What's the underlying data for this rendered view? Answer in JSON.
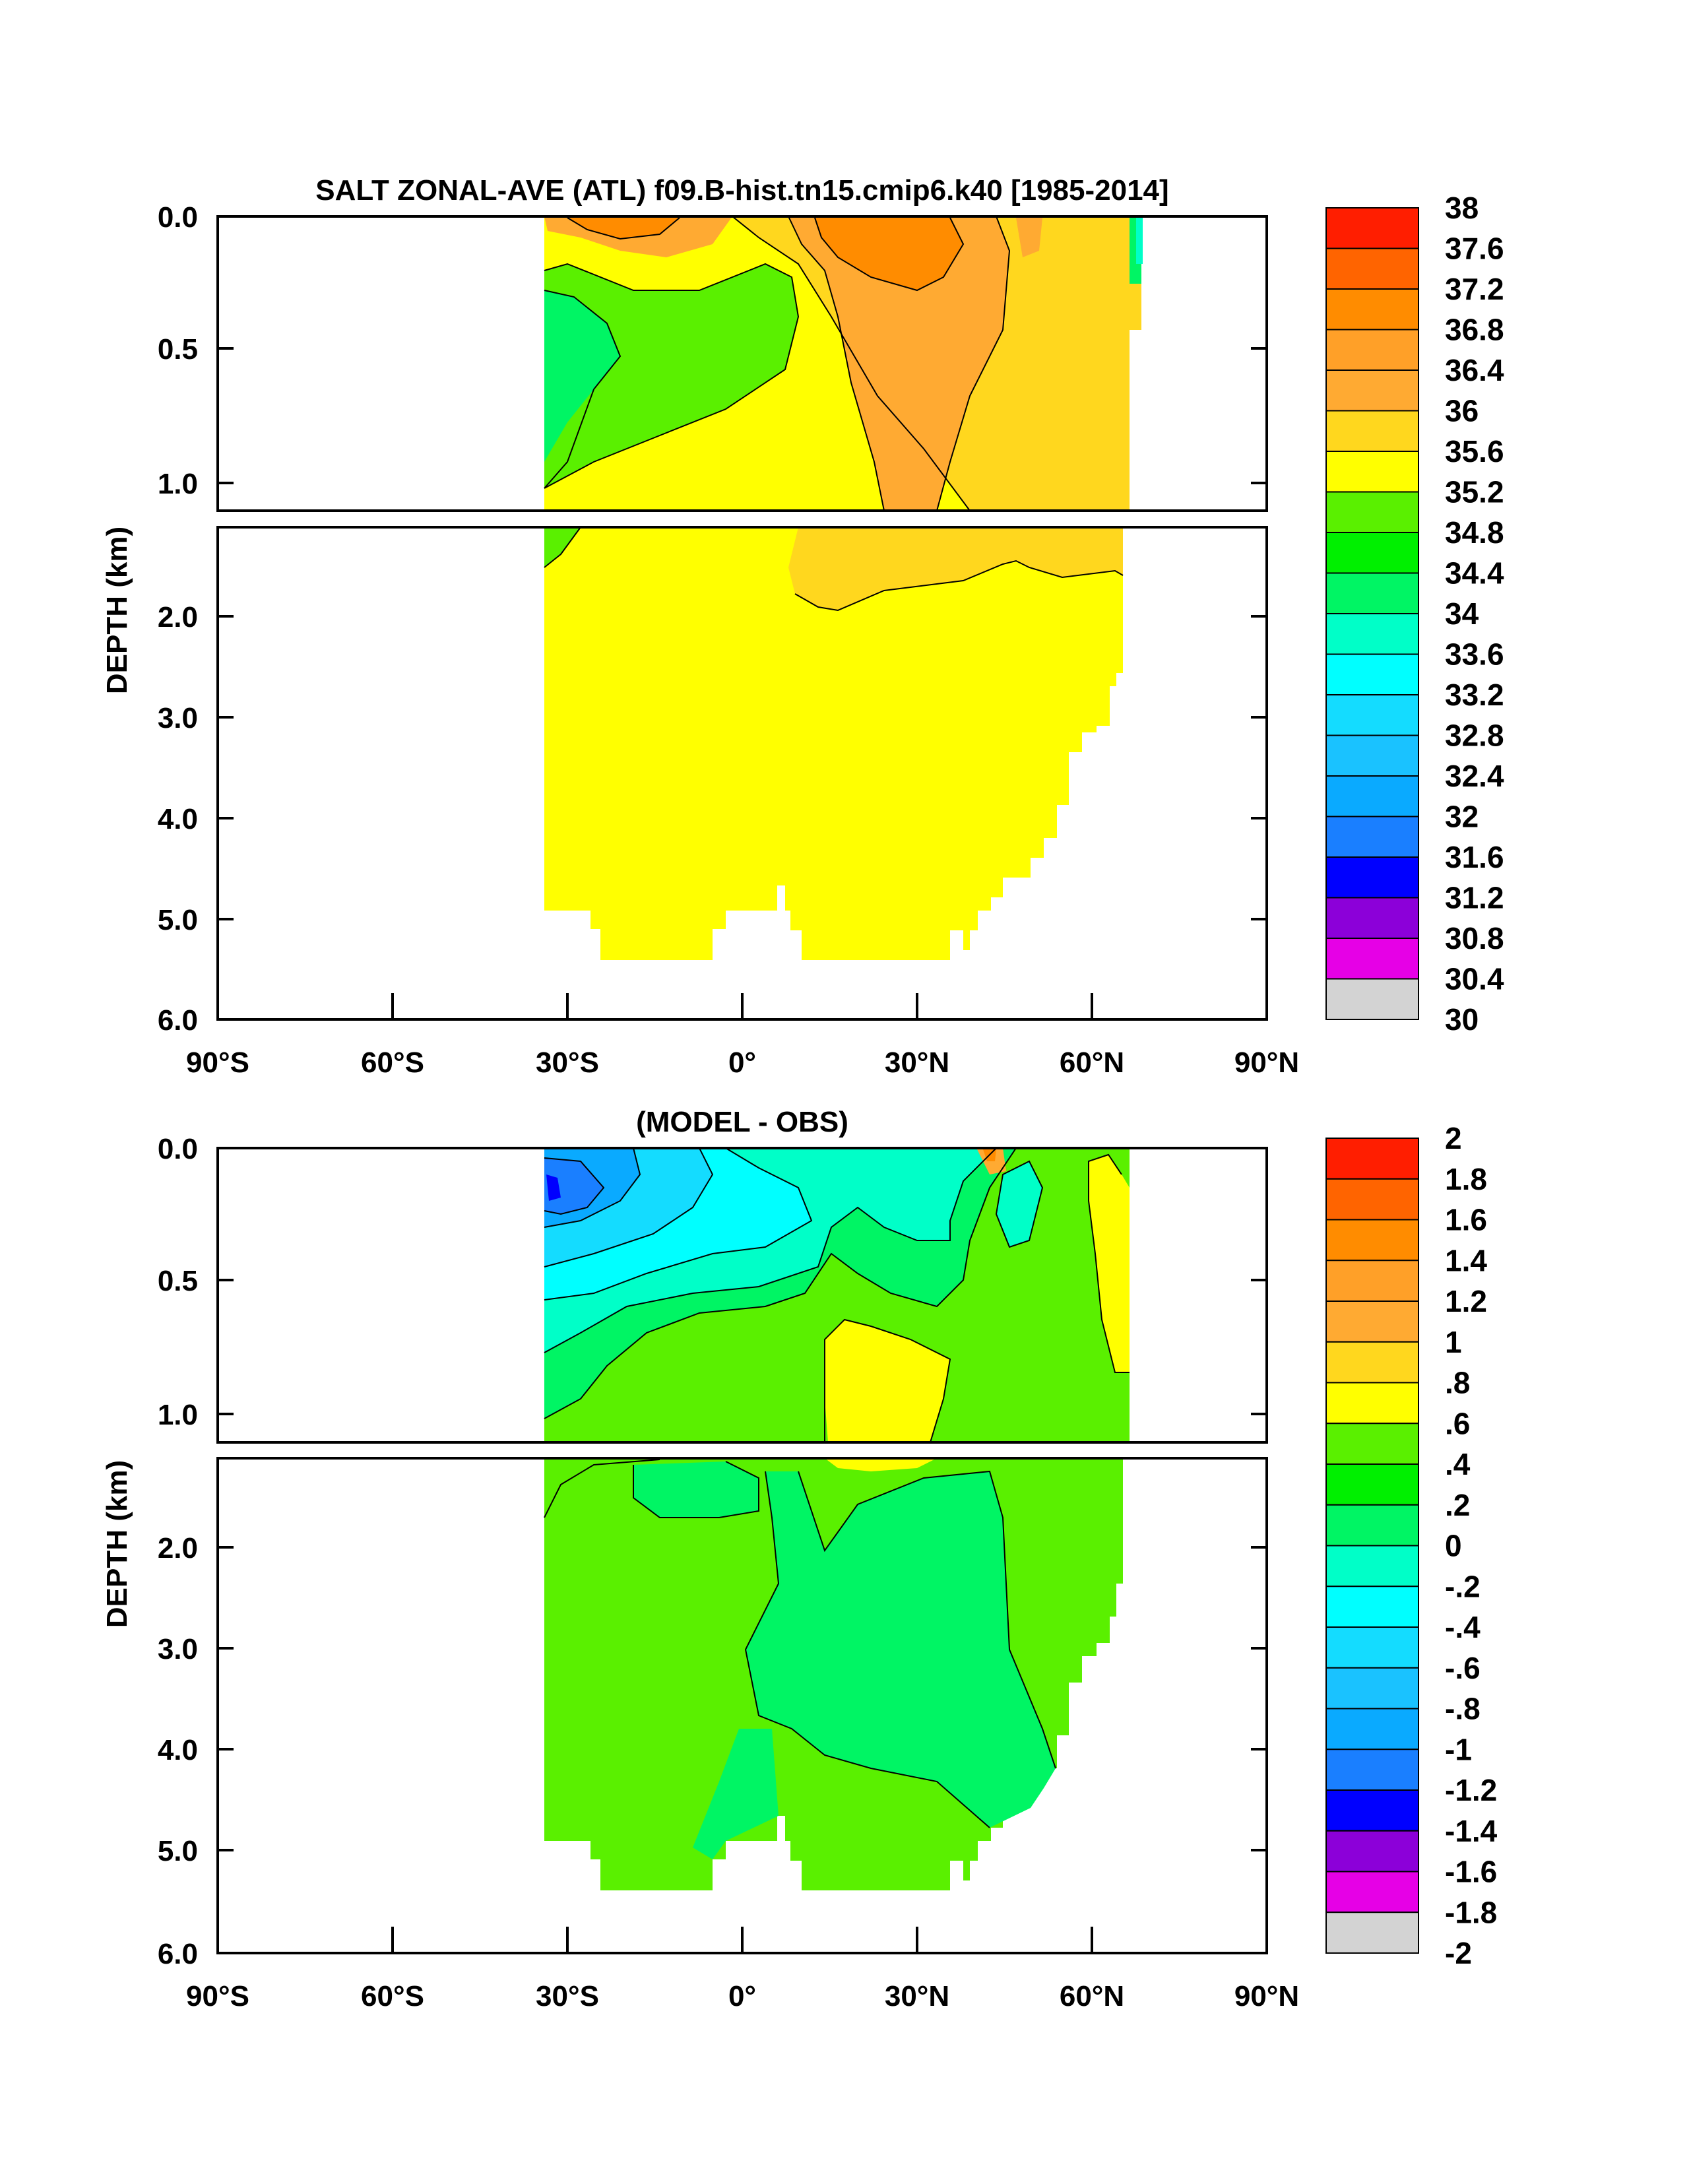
{
  "colors": [
    "#717171",
    "#d3d3d3",
    "#e600e6",
    "#8c00d9",
    "#0000ff",
    "#1a7fff",
    "#0aaaff",
    "#1ac2ff",
    "#14dcff",
    "#00ffff",
    "#00ffc8",
    "#00f564",
    "#00f000",
    "#5af000",
    "#ffff00",
    "#ffd71e",
    "#ffaa32",
    "#ffa028",
    "#ff8c00",
    "#ff6400",
    "#ff1e00",
    "#e60000",
    "#c80000"
  ],
  "chart_data": [
    {
      "type": "heatmap",
      "title": "SALT ZONAL-AVE (ATL) f09.B-hist.tn15.cmip6.k40 [1985-2014]",
      "xlabel": "",
      "ylabel": "DEPTH (km)",
      "x_ticks": [
        "90°S",
        "60°S",
        "30°S",
        "0°",
        "30°N",
        "60°N",
        "90°N"
      ],
      "y_ticks_top": [
        "0.0",
        "0.5",
        "1.0"
      ],
      "y_ticks_bottom": [
        "2.0",
        "3.0",
        "4.0",
        "5.0",
        "6.0"
      ],
      "xlim": [
        -90,
        90
      ],
      "ylim": [
        6.0,
        0.0
      ],
      "colorbar_labels": [
        "38",
        "37.6",
        "37.2",
        "36.8",
        "36.4",
        "36",
        "35.6",
        "35.2",
        "34.8",
        "34.4",
        "34",
        "33.6",
        "33.2",
        "32.8",
        "32.4",
        "32",
        "31.6",
        "31.2",
        "30.8",
        "30.4",
        "30"
      ],
      "approx_regions": [
        {
          "lat": [
            -34,
            -15
          ],
          "depth": [
            0.1,
            1.1
          ],
          "value": 34.4
        },
        {
          "lat": [
            -15,
            10
          ],
          "depth": [
            0.2,
            1.1
          ],
          "value": 34.6
        },
        {
          "lat": [
            10,
            45
          ],
          "depth": [
            0.0,
            1.2
          ],
          "value": 35.8
        },
        {
          "lat": [
            20,
            35
          ],
          "depth": [
            0.0,
            0.3
          ],
          "value": 36.6
        },
        {
          "lat": [
            45,
            65
          ],
          "depth": [
            0.0,
            1.5
          ],
          "value": 35.4
        },
        {
          "lat": [
            -34,
            65
          ],
          "depth": [
            1.8,
            5.4
          ],
          "value": 34.9
        }
      ]
    },
    {
      "type": "heatmap",
      "title": "(MODEL - OBS)",
      "xlabel": "",
      "ylabel": "DEPTH (km)",
      "x_ticks": [
        "90°S",
        "60°S",
        "30°S",
        "0°",
        "30°N",
        "60°N",
        "90°N"
      ],
      "y_ticks_top": [
        "0.0",
        "0.5",
        "1.0"
      ],
      "y_ticks_bottom": [
        "2.0",
        "3.0",
        "4.0",
        "5.0",
        "6.0"
      ],
      "xlim": [
        -90,
        90
      ],
      "ylim": [
        6.0,
        0.0
      ],
      "colorbar_labels": [
        "2",
        "1.8",
        "1.6",
        "1.4",
        "1.2",
        "1",
        ".8",
        ".6",
        ".4",
        ".2",
        "0",
        "-.2",
        "-.4",
        "-.6",
        "-.8",
        "-1",
        "-1.2",
        "-1.4",
        "-1.6",
        "-1.8",
        "-2"
      ],
      "approx_regions": [
        {
          "lat": [
            -34,
            -25
          ],
          "depth": [
            0.0,
            0.3
          ],
          "value": -1.1
        },
        {
          "lat": [
            -34,
            5
          ],
          "depth": [
            0.0,
            0.9
          ],
          "value": -0.5
        },
        {
          "lat": [
            5,
            40
          ],
          "depth": [
            0.0,
            0.5
          ],
          "value": -0.1
        },
        {
          "lat": [
            10,
            25
          ],
          "depth": [
            0.7,
            1.2
          ],
          "value": 0.5
        },
        {
          "lat": [
            55,
            65
          ],
          "depth": [
            0.0,
            1.0
          ],
          "value": 0.5
        },
        {
          "lat": [
            -34,
            65
          ],
          "depth": [
            1.3,
            5.4
          ],
          "value": 0.1
        }
      ]
    }
  ]
}
